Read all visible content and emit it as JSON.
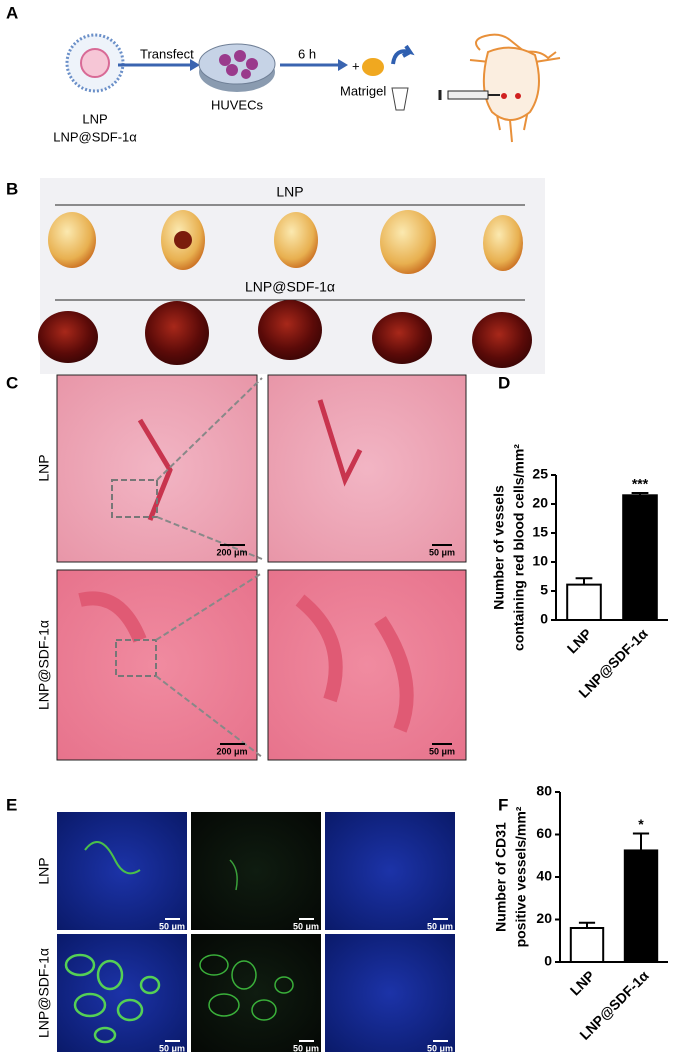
{
  "panel_labels": [
    "A",
    "B",
    "C",
    "D",
    "E",
    "F"
  ],
  "schematic": {
    "particle": "LNP",
    "particle_sdf": "LNP@SDF-1α",
    "transfect": "Transfect",
    "cells": "HUVECs",
    "time": "6 h",
    "plus": "+",
    "matrigel": "Matrigel"
  },
  "gels": {
    "group_1": "LNP",
    "group_2": "LNP@SDF-1α"
  },
  "histology": {
    "row_1": "LNP",
    "row_2": "LNP@SDF-1α",
    "scale_1a": "200 μm",
    "scale_1b": "50 μm",
    "scale_2a": "200 μm",
    "scale_2b": "50 μm"
  },
  "immunofluorescence": {
    "row_1": "LNP",
    "row_2": "LNP@SDF-1α",
    "scales": [
      "50 μm",
      "50 μm",
      "50 μm",
      "50 μm",
      "50 μm",
      "50 μm"
    ]
  },
  "chart_data": [
    {
      "type": "bar",
      "ylabel": [
        "Number of vessels",
        "containing red blood cells/mm²"
      ],
      "categories": [
        "LNP",
        "LNP@SDF-1α"
      ],
      "values": [
        6.1,
        21.5
      ],
      "errors": [
        1.1,
        0.4
      ],
      "colors": [
        "#ffffff",
        "#000000"
      ],
      "annotation": "***",
      "ylim": [
        0,
        25
      ],
      "yticks": [
        0,
        5,
        10,
        15,
        20,
        25
      ]
    },
    {
      "type": "bar",
      "ylabel": [
        "Number of CD31",
        "positive vessels/mm²"
      ],
      "categories": [
        "LNP",
        "LNP@SDF-1α"
      ],
      "values": [
        16,
        52.5
      ],
      "errors": [
        2.5,
        8
      ],
      "colors": [
        "#ffffff",
        "#000000"
      ],
      "annotation": "*",
      "ylim": [
        0,
        80
      ],
      "yticks": [
        0,
        20,
        40,
        60,
        80
      ]
    }
  ]
}
